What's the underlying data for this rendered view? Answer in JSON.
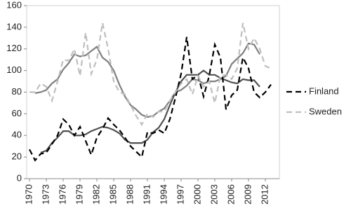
{
  "chart_data": {
    "type": "line",
    "x": [
      1970,
      1971,
      1972,
      1973,
      1974,
      1975,
      1976,
      1977,
      1978,
      1979,
      1980,
      1981,
      1982,
      1983,
      1984,
      1985,
      1986,
      1987,
      1988,
      1989,
      1990,
      1991,
      1992,
      1993,
      1994,
      1995,
      1996,
      1997,
      1998,
      1999,
      2000,
      2001,
      2002,
      2003,
      2004,
      2005,
      2006,
      2007,
      2008,
      2009,
      2010,
      2011,
      2012,
      2013
    ],
    "series": [
      {
        "color": "#7f7f7f",
        "dashed": false,
        "values": [
          null,
          79,
          80,
          82,
          88,
          92,
          101,
          107,
          115,
          113,
          114,
          118,
          122,
          112,
          108,
          100,
          87,
          76,
          68,
          64,
          59,
          57,
          58,
          62,
          65,
          72,
          80,
          82,
          86,
          92,
          91,
          88,
          90,
          90,
          92,
          95,
          106,
          111,
          116,
          125,
          124,
          115,
          null,
          null
        ]
      },
      {
        "color": "#505050",
        "dashed": false,
        "values": [
          null,
          null,
          24,
          26,
          33,
          38,
          44,
          44,
          40,
          40,
          41,
          44,
          46,
          48,
          47,
          45,
          42,
          36,
          33,
          33,
          33,
          36,
          43,
          47,
          55,
          68,
          80,
          90,
          96,
          96,
          96,
          100,
          96,
          96,
          93,
          91,
          89,
          88,
          92,
          91,
          91,
          85,
          null,
          null
        ]
      },
      {
        "name": "Finland",
        "color": "#000000",
        "dashed": true,
        "values": [
          27,
          17,
          23,
          24,
          32,
          40,
          55,
          50,
          40,
          48,
          35,
          22,
          38,
          46,
          56,
          50,
          45,
          38,
          30,
          25,
          20,
          43,
          42,
          45,
          42,
          55,
          75,
          97,
          131,
          92,
          96,
          76,
          95,
          124,
          112,
          64,
          77,
          82,
          112,
          102,
          80,
          75,
          80,
          87
        ]
      },
      {
        "name": "Sweden",
        "color": "#bfbfbf",
        "dashed": true,
        "values": [
          80,
          80,
          88,
          85,
          72,
          90,
          110,
          109,
          120,
          95,
          135,
          97,
          110,
          144,
          120,
          90,
          80,
          78,
          68,
          58,
          50,
          60,
          57,
          62,
          62,
          72,
          80,
          88,
          92,
          78,
          95,
          85,
          90,
          70,
          95,
          96,
          92,
          102,
          144,
          120,
          130,
          120,
          104,
          102
        ]
      }
    ],
    "xlim": [
      1969.5,
      2014.5
    ],
    "xticks": [
      1970,
      1973,
      1976,
      1979,
      1982,
      1985,
      1988,
      1991,
      1994,
      1997,
      2000,
      2003,
      2006,
      2009,
      2012
    ],
    "ylim": [
      0,
      160
    ],
    "yticks": [
      0,
      20,
      40,
      60,
      80,
      100,
      120,
      140,
      160
    ],
    "legend": "right"
  }
}
